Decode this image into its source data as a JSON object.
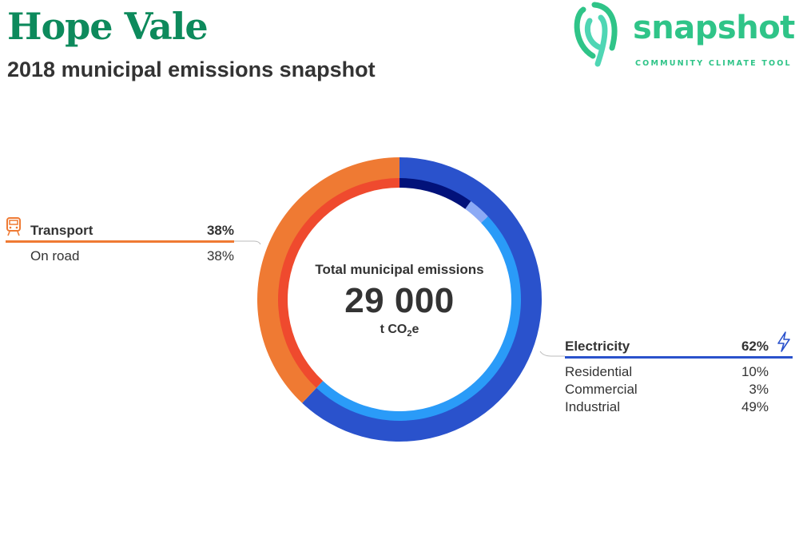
{
  "header": {
    "title": "Hope Vale",
    "subtitle": "2018 municipal emissions snapshot"
  },
  "logo": {
    "wordmark": "snapshot",
    "tagline": "COMMUNITY CLIMATE TOOL"
  },
  "center": {
    "label": "Total municipal emissions",
    "value": "29 000",
    "unit_prefix": "t CO",
    "unit_sub": "2",
    "unit_suffix": "e"
  },
  "chart_data": {
    "type": "pie",
    "total": 29000,
    "unit": "t CO2e",
    "categories": [
      {
        "name": "Electricity",
        "percent_label": "62%",
        "value": 62,
        "color": "#2a52cc",
        "icon": "lightning-icon",
        "subcategories": [
          {
            "name": "Residential",
            "percent_label": "10%",
            "value": 10,
            "color": "#02127a"
          },
          {
            "name": "Commercial",
            "percent_label": "3%",
            "value": 3,
            "color": "#8caaf5"
          },
          {
            "name": "Industrial",
            "percent_label": "49%",
            "value": 49,
            "color": "#2a9bf8"
          }
        ]
      },
      {
        "name": "Transport",
        "percent_label": "38%",
        "value": 38,
        "color": "#ef7a33",
        "icon": "train-icon",
        "subcategories": [
          {
            "name": "On road",
            "percent_label": "38%",
            "value": 38,
            "color": "#ef4a2e"
          }
        ]
      }
    ]
  }
}
